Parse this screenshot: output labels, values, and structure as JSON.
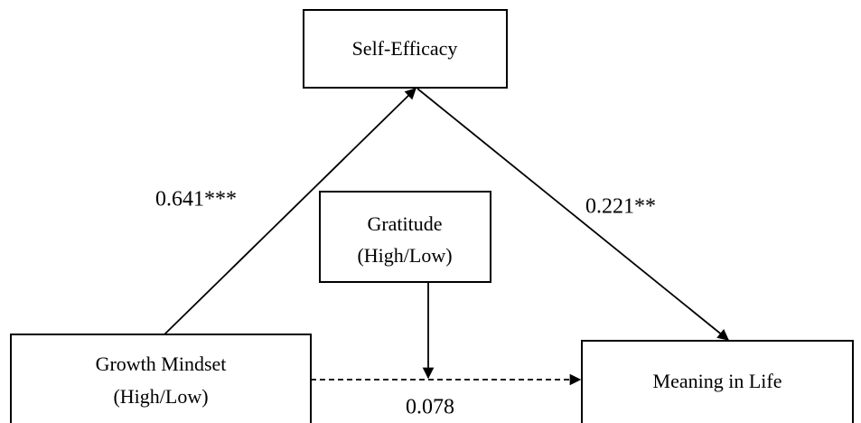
{
  "nodes": [
    {
      "label": "Self-Efficacy"
    },
    {
      "label": "Gratitude",
      "sublabel": "(High/Low)"
    },
    {
      "label": "Growth Mindset",
      "sublabel": "(High/Low)"
    },
    {
      "label": "Meaning in Life"
    }
  ],
  "edges": [
    {
      "label": "0.641***"
    },
    {
      "label": "0.221**"
    },
    {
      "label": "0.078"
    }
  ]
}
